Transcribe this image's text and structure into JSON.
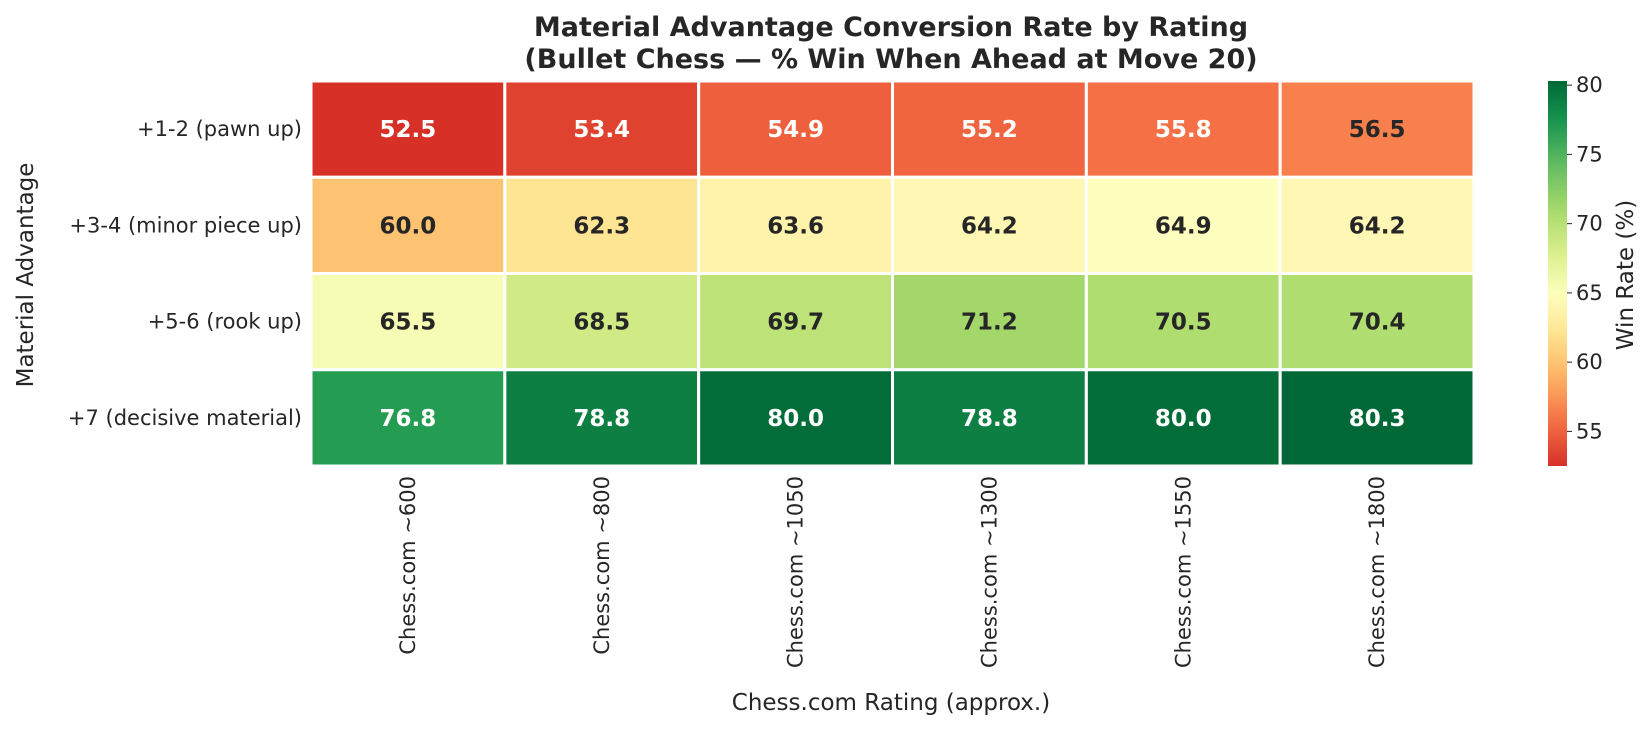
{
  "chart_data": {
    "type": "heatmap",
    "title": "Material Advantage Conversion Rate by Rating",
    "subtitle": "(Bullet Chess — % Win When Ahead at Move 20)",
    "xlabel": "Chess.com Rating (approx.)",
    "ylabel": "Material Advantage",
    "x": [
      "Chess.com ~600",
      "Chess.com ~800",
      "Chess.com ~1050",
      "Chess.com ~1300",
      "Chess.com ~1550",
      "Chess.com ~1800"
    ],
    "y": [
      "+1-2 (pawn up)",
      "+3-4 (minor piece up)",
      "+5-6 (rook up)",
      "+7 (decisive material)"
    ],
    "values": [
      [
        52.5,
        53.4,
        54.9,
        55.2,
        55.8,
        56.5
      ],
      [
        60.0,
        62.3,
        63.6,
        64.2,
        64.9,
        64.2
      ],
      [
        65.5,
        68.5,
        69.7,
        71.2,
        70.5,
        70.4
      ],
      [
        76.8,
        78.8,
        80.0,
        78.8,
        80.0,
        80.3
      ]
    ],
    "colormap": "RdYlGn",
    "vmin": 52.5,
    "vmax": 80.3,
    "colorbar": {
      "label": "Win Rate (%)",
      "ticks": [
        55,
        60,
        65,
        70,
        75,
        80
      ]
    },
    "grid": false
  }
}
